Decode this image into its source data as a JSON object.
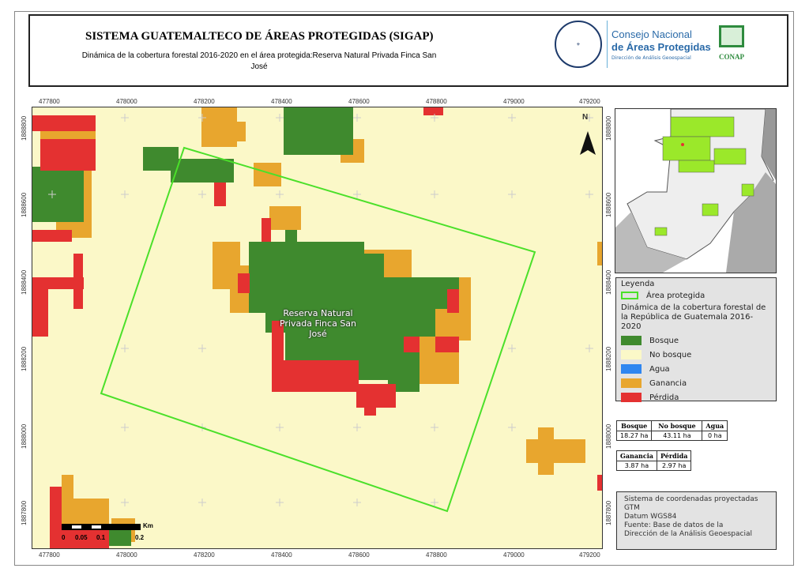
{
  "header": {
    "title": "SISTEMA GUATEMALTECO DE ÁREAS PROTEGIDAS  (SIGAP)",
    "subtitle": "Dinámica de la cobertura forestal 2016-2020 en el área protegida:Reserva Natural Privada Finca San José",
    "seal_text": "GOBIERNO DE LA REPÚBLICA GUATEMALA",
    "conap_line1": "Consejo Nacional",
    "conap_line2": "de Áreas Protegidas",
    "conap_line3": "Dirección de Análisis Geoespacial",
    "conap_logo": "CONAP"
  },
  "map": {
    "x_ticks": [
      "477800",
      "478000",
      "478200",
      "478400",
      "478600",
      "478800",
      "479000",
      "479200"
    ],
    "y_ticks": [
      "1888800",
      "1888600",
      "1888400",
      "1888200",
      "1888000",
      "1887800"
    ],
    "north": "N",
    "area_label": "Reserva Natural Privada Finca San José",
    "scale": {
      "labels": [
        "0",
        "0.05",
        "0.1",
        "0.2"
      ],
      "unit": "Km"
    }
  },
  "legend": {
    "title": "Leyenda",
    "area": "Área protegida",
    "section": "Dinámica de la cobertura forestal de la República de Guatemala 2016-2020",
    "items": [
      {
        "label": "Bosque",
        "color": "#3f8a2e"
      },
      {
        "label": "No bosque",
        "color": "#fbf8c8"
      },
      {
        "label": "Agua",
        "color": "#2f86f0"
      },
      {
        "label": "Ganancia",
        "color": "#e8a62e"
      },
      {
        "label": "Pérdida",
        "color": "#e43131"
      }
    ]
  },
  "stats1": {
    "headers": [
      "Bosque",
      "No bosque",
      "Agua"
    ],
    "values": [
      "18.27 ha",
      "43.11 ha",
      "0 ha"
    ]
  },
  "stats2": {
    "headers": [
      "Ganancia",
      "Pérdida"
    ],
    "values": [
      "3.87 ha",
      "2.97 ha"
    ]
  },
  "info": [
    "Sistema de coordenadas proyectadas",
    "GTM",
    "Datum WGS84",
    "Fuente: Base de datos de la",
    "Dirección de la Análisis Geoespacial"
  ]
}
